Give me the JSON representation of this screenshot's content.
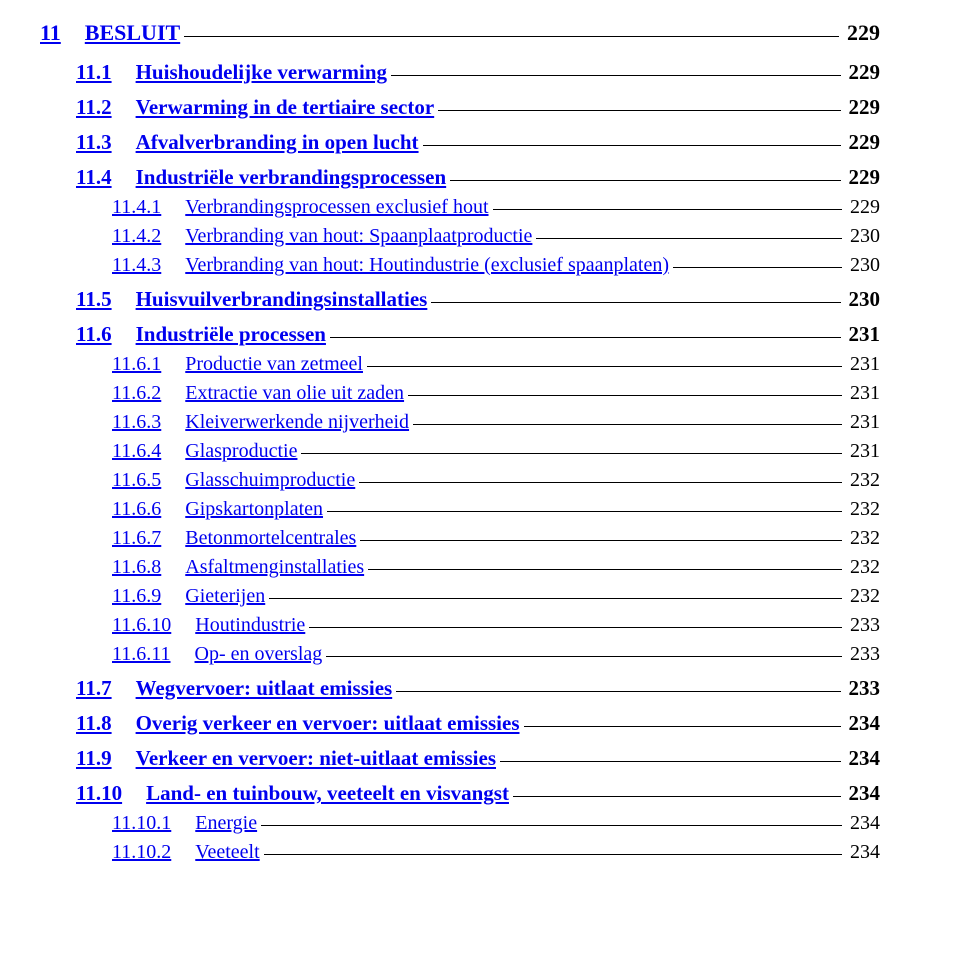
{
  "link_color": "#0000ee",
  "text_color": "#000000",
  "entries": [
    {
      "level": 0,
      "num": "11",
      "title": "BESLUIT",
      "page": "229"
    },
    {
      "level": 1,
      "num": "11.1",
      "title": "Huishoudelijke verwarming",
      "page": "229"
    },
    {
      "level": 1,
      "num": "11.2",
      "title": "Verwarming in de tertiaire sector",
      "page": "229"
    },
    {
      "level": 1,
      "num": "11.3",
      "title": "Afvalverbranding in open lucht",
      "page": "229"
    },
    {
      "level": 1,
      "num": "11.4",
      "title": "Industriële verbrandingsprocessen",
      "page": "229"
    },
    {
      "level": 2,
      "num": "11.4.1",
      "title": "Verbrandingsprocessen exclusief hout",
      "page": "229"
    },
    {
      "level": 2,
      "num": "11.4.2",
      "title": "Verbranding van hout: Spaanplaatproductie",
      "page": "230"
    },
    {
      "level": 2,
      "num": "11.4.3",
      "title": "Verbranding van hout: Houtindustrie (exclusief spaanplaten)",
      "page": "230"
    },
    {
      "level": 1,
      "num": "11.5",
      "title": "Huisvuilverbrandingsinstallaties",
      "page": "230"
    },
    {
      "level": 1,
      "num": "11.6",
      "title": "Industriële processen",
      "page": "231"
    },
    {
      "level": 2,
      "num": "11.6.1",
      "title": "Productie van zetmeel",
      "page": "231"
    },
    {
      "level": 2,
      "num": "11.6.2",
      "title": "Extractie van olie uit zaden",
      "page": "231"
    },
    {
      "level": 2,
      "num": "11.6.3",
      "title": "Kleiverwerkende nijverheid",
      "page": "231"
    },
    {
      "level": 2,
      "num": "11.6.4",
      "title": "Glasproductie",
      "page": "231"
    },
    {
      "level": 2,
      "num": "11.6.5",
      "title": "Glasschuimproductie",
      "page": "232"
    },
    {
      "level": 2,
      "num": "11.6.6",
      "title": "Gipskartonplaten",
      "page": "232"
    },
    {
      "level": 2,
      "num": "11.6.7",
      "title": "Betonmortelcentrales",
      "page": "232"
    },
    {
      "level": 2,
      "num": "11.6.8",
      "title": "Asfaltmenginstallaties",
      "page": "232"
    },
    {
      "level": 2,
      "num": "11.6.9",
      "title": "Gieterijen",
      "page": "232"
    },
    {
      "level": 2,
      "num": "11.6.10",
      "title": "Houtindustrie",
      "page": "233"
    },
    {
      "level": 2,
      "num": "11.6.11",
      "title": "Op- en overslag",
      "page": "233"
    },
    {
      "level": 1,
      "num": "11.7",
      "title": "Wegvervoer: uitlaat emissies",
      "page": "233"
    },
    {
      "level": 1,
      "num": "11.8",
      "title": "Overig verkeer en vervoer: uitlaat emissies",
      "page": "234"
    },
    {
      "level": 1,
      "num": "11.9",
      "title": "Verkeer en vervoer: niet-uitlaat emissies",
      "page": "234"
    },
    {
      "level": 1,
      "num": "11.10",
      "title": "Land- en tuinbouw, veeteelt en visvangst",
      "page": "234"
    },
    {
      "level": 2,
      "num": "11.10.1",
      "title": "Energie",
      "page": "234"
    },
    {
      "level": 2,
      "num": "11.10.2",
      "title": "Veeteelt",
      "page": "234"
    }
  ]
}
